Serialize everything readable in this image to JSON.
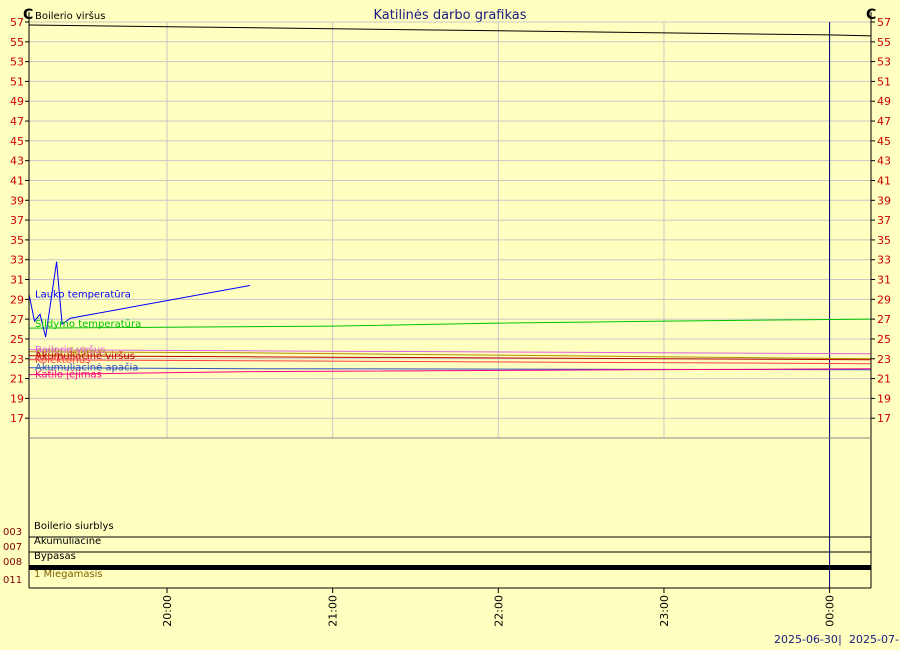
{
  "chart_data": {
    "type": "line",
    "title": "Katilinės darbo grafikas",
    "unit_left": "C",
    "unit_right": "C",
    "ylim": [
      15,
      57
    ],
    "yticks": [
      17,
      19,
      21,
      23,
      25,
      27,
      29,
      31,
      33,
      35,
      37,
      39,
      41,
      43,
      45,
      47,
      49,
      51,
      53,
      55,
      57
    ],
    "xlim": [
      "2025-06-30 19:10",
      "2025-07-01 00:15"
    ],
    "x_ticks": [
      "20:00",
      "21:00",
      "22:00",
      "23:00",
      "00:00"
    ],
    "date_labels": [
      "2025-06-30",
      "2025-07-"
    ],
    "date_separator": "|",
    "grid": true,
    "series": [
      {
        "name": "Boilerio viršus",
        "color": "#000000",
        "x": [
          "19:10",
          "00:00",
          "00:15"
        ],
        "values": [
          56.7,
          55.7,
          55.6
        ]
      },
      {
        "name": "Šildymo temperatūra",
        "color": "#00c000",
        "x": [
          "19:10",
          "21:00",
          "22:00",
          "23:00",
          "00:15"
        ],
        "values": [
          26.1,
          26.3,
          26.6,
          26.8,
          27.0
        ]
      },
      {
        "name": "Katilo išėjimas",
        "color": "#b09000",
        "x": [
          "19:10",
          "20:30",
          "00:15"
        ],
        "values": [
          23.7,
          23.6,
          23.0
        ]
      },
      {
        "name": "Boilerio viršus",
        "color": "#e060e0",
        "x": [
          "19:10",
          "20:30",
          "00:15"
        ],
        "values": [
          23.9,
          23.8,
          23.5
        ]
      },
      {
        "name": "Akumuliacinė viršus",
        "color": "#c00000",
        "x": [
          "19:10",
          "20:30",
          "00:15"
        ],
        "values": [
          23.3,
          23.2,
          22.9
        ]
      },
      {
        "name": "Kolektorius",
        "color": "#ff4040",
        "x": [
          "19:10",
          "20:30",
          "00:15"
        ],
        "values": [
          22.9,
          22.8,
          22.5
        ]
      },
      {
        "name": "Akumuliacinė apačia",
        "color": "#3050c0",
        "x": [
          "19:10",
          "20:30",
          "00:15"
        ],
        "values": [
          22.1,
          22.0,
          21.9
        ]
      },
      {
        "name": "Katilo įėjimas",
        "color": "#ff0080",
        "x": [
          "19:10",
          "20:30",
          "00:15"
        ],
        "values": [
          21.4,
          21.7,
          22.0
        ]
      },
      {
        "name": "Lauko temperatūra",
        "color": "#0000ff",
        "x": [
          "19:10",
          "19:12",
          "19:14",
          "19:16",
          "19:20",
          "19:22",
          "19:25",
          "20:30"
        ],
        "values": [
          29.5,
          26.8,
          27.5,
          25.2,
          32.8,
          26.5,
          27.1,
          30.4
        ]
      }
    ],
    "status_rows": [
      {
        "id": "003",
        "label": "Boilerio siurblys",
        "color": "#000000"
      },
      {
        "id": "007",
        "label": "Akumuliacinė",
        "color": "#000000"
      },
      {
        "id": "008",
        "label": "Bypasas",
        "color": "#000000"
      },
      {
        "id": "011",
        "label": "1 Miegamasis",
        "color": "#806000"
      }
    ]
  }
}
